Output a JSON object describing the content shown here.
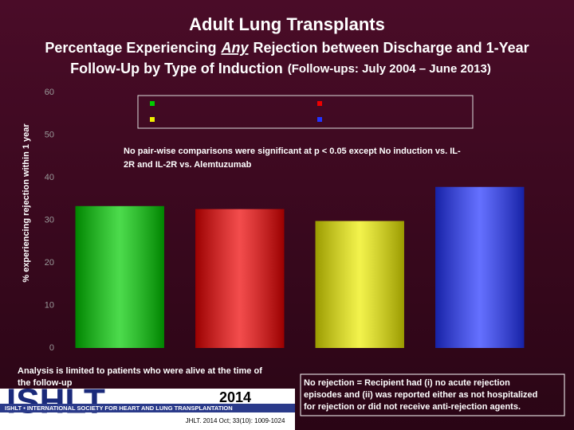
{
  "chart_data": {
    "type": "bar",
    "title": "Adult Lung Transplants",
    "subtitle_line1": [
      "Percentage Experiencing",
      "Any",
      "Rejection between Discharge and 1-Year"
    ],
    "subtitle_line2": [
      "Follow-Up by Type of Induction",
      "(Follow-ups: July 2004 – June 2013)"
    ],
    "ylabel": "% experiencing rejection within 1 year",
    "annotation": [
      "No pair-wise comparisons were significant at p < 0.05 except No induction vs. IL-",
      "2R and IL-2R vs. Alemtuzumab"
    ],
    "categories": [
      null,
      null,
      null,
      null
    ],
    "values": [
      33.3,
      32.6,
      29.8,
      37.8
    ],
    "colors": [
      "#00cc00",
      "#ee0000",
      "#eeee00",
      "#2233ff"
    ],
    "ylim": [
      0,
      60
    ],
    "yticks": [
      0,
      10,
      20,
      30,
      40,
      50,
      60
    ],
    "grid": false
  },
  "footer": {
    "note": [
      "Analysis is limited to patients who were alive at the time of",
      "the follow-up"
    ],
    "definition": [
      "No rejection  = Recipient had (i) no acute rejection",
      "episodes and (ii) was reported either as not hospitalized",
      "for rejection or did not receive anti-rejection agents."
    ],
    "logo": "ISHLT",
    "tagline": "ISHLT • INTERNATIONAL SOCIETY FOR HEART AND LUNG TRANSPLANTATION",
    "year": "2014",
    "citation": "JHLT. 2014 Oct; 33(10): 1009-1024"
  }
}
